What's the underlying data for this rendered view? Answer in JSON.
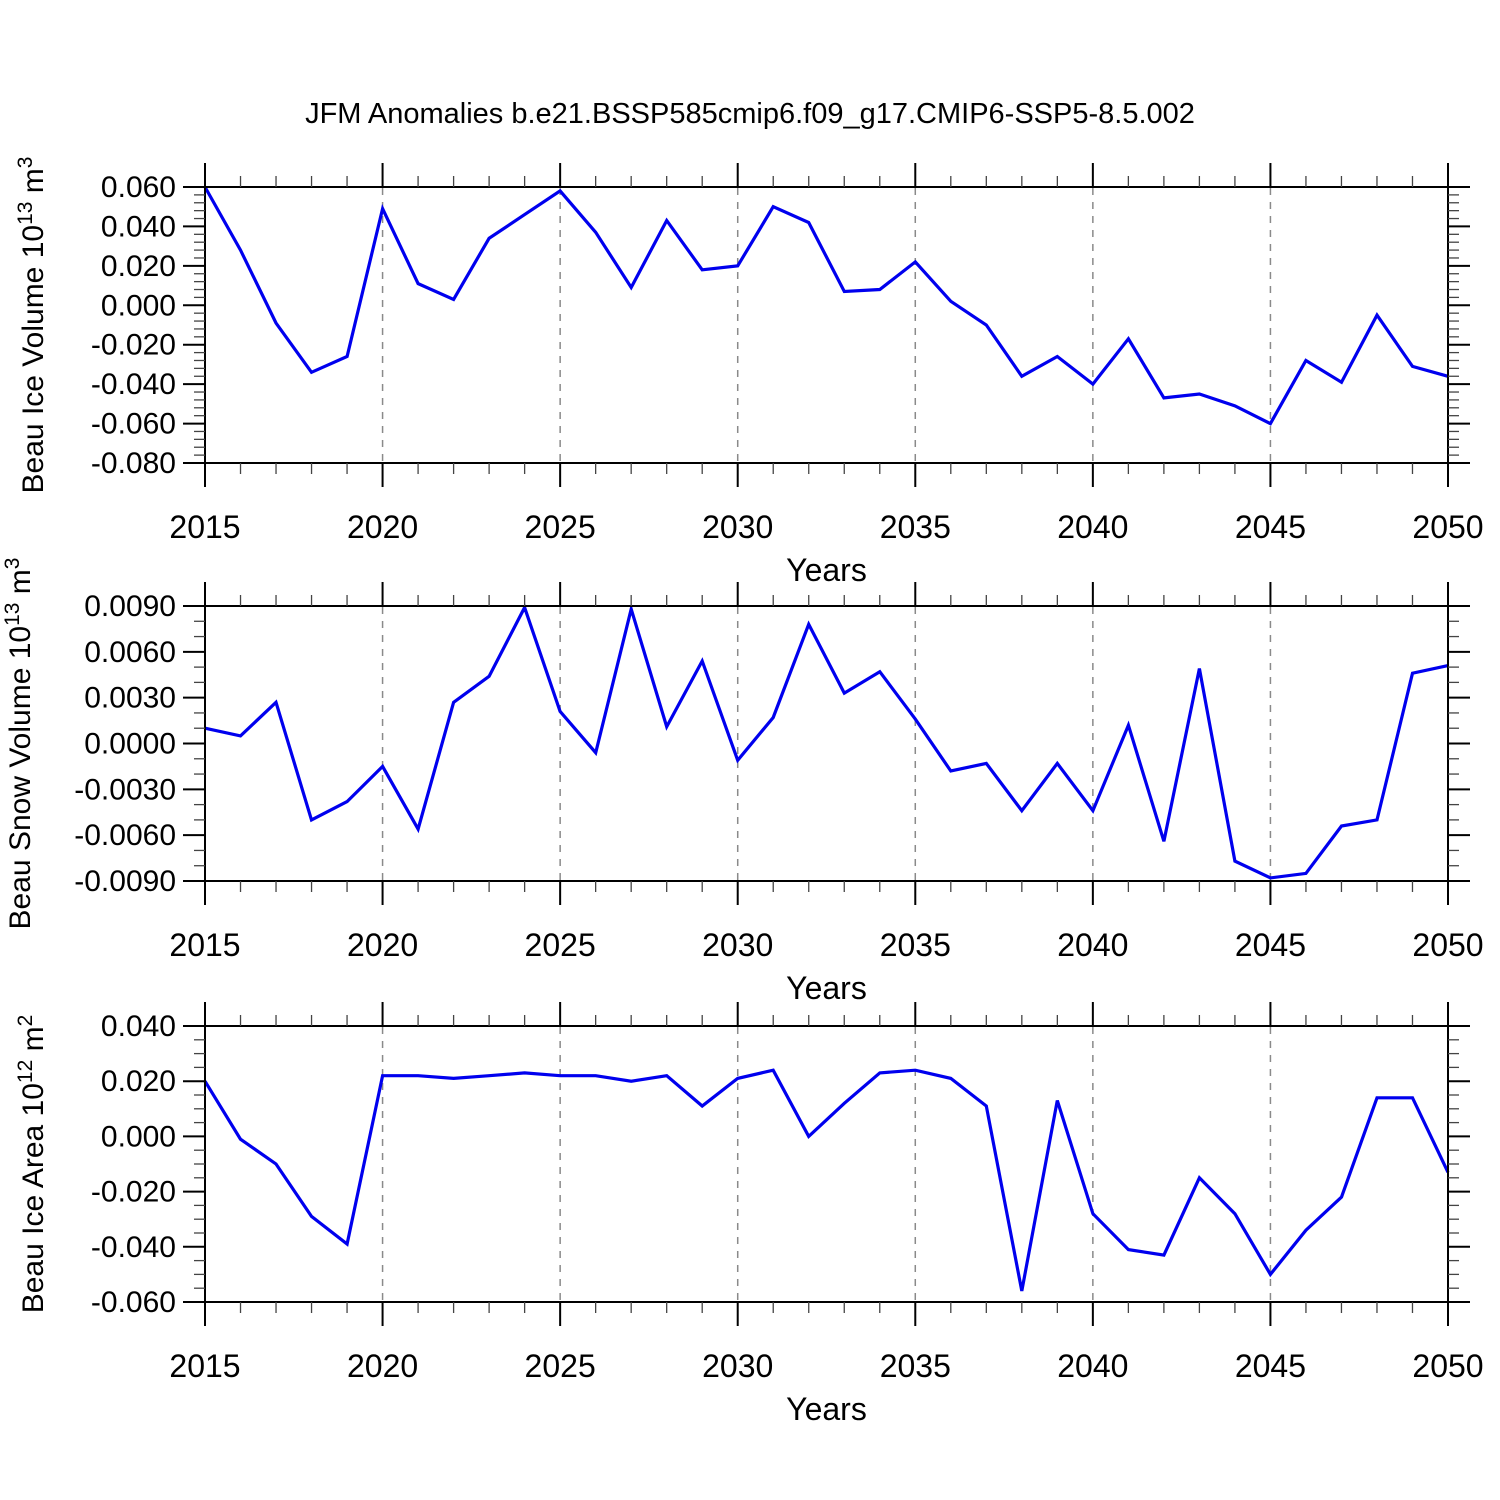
{
  "title": "JFM Anomalies b.e21.BSSP585cmip6.f09_g17.CMIP6-SSP5-8.5.002",
  "colors": {
    "line": "#0000ee",
    "grid": "#8a8a8a",
    "frame": "#000000",
    "minor_tick": "#444444",
    "background": "#ffffff"
  },
  "x_axis": {
    "label": "Years",
    "tick_labels": [
      "2015",
      "2020",
      "2025",
      "2030",
      "2035",
      "2040",
      "2045",
      "2050"
    ],
    "range": [
      2015,
      2050
    ],
    "minor_step": 1,
    "grid_years": [
      2020,
      2025,
      2030,
      2035,
      2040,
      2045
    ]
  },
  "chart_data": [
    {
      "type": "line",
      "title": "JFM Anomalies b.e21.BSSP585cmip6.f09_g17.CMIP6-SSP5-8.5.002",
      "ylabel": "Beau Ice Volume 10^13 m^3",
      "ylabel_parts": [
        {
          "t": "Beau Ice Volume 10"
        },
        {
          "t": "13",
          "sup": true
        },
        {
          "t": " m"
        },
        {
          "t": "3",
          "sup": true
        }
      ],
      "xlabel": "Years",
      "ylim": [
        -0.08,
        0.06
      ],
      "ytick_step": 0.02,
      "y_minor_step": 0.004,
      "yticks": [
        "0.060",
        "0.040",
        "0.020",
        "0.000",
        "-0.020",
        "-0.040",
        "-0.060",
        "-0.080"
      ],
      "grid": "vertical-dashed",
      "legend": "none",
      "x": [
        2015,
        2016,
        2017,
        2018,
        2019,
        2020,
        2021,
        2022,
        2023,
        2024,
        2025,
        2026,
        2027,
        2028,
        2029,
        2030,
        2031,
        2032,
        2033,
        2034,
        2035,
        2036,
        2037,
        2038,
        2039,
        2040,
        2041,
        2042,
        2043,
        2044,
        2045,
        2046,
        2047,
        2048,
        2049,
        2050
      ],
      "values": [
        0.06,
        0.028,
        -0.009,
        -0.034,
        -0.026,
        0.049,
        0.011,
        0.003,
        0.034,
        0.046,
        0.058,
        0.037,
        0.009,
        0.043,
        0.018,
        0.02,
        0.05,
        0.042,
        0.007,
        0.008,
        0.022,
        0.002,
        -0.01,
        -0.036,
        -0.026,
        -0.04,
        -0.017,
        -0.047,
        -0.045,
        -0.051,
        -0.06,
        -0.028,
        -0.039,
        -0.005,
        -0.031,
        -0.036
      ]
    },
    {
      "type": "line",
      "ylabel": "Beau Snow Volume 10^13 m^3",
      "ylabel_parts": [
        {
          "t": "Beau Snow Volume 10"
        },
        {
          "t": "13",
          "sup": true
        },
        {
          "t": " m"
        },
        {
          "t": "3",
          "sup": true
        }
      ],
      "xlabel": "Years",
      "ylim": [
        -0.009,
        0.009
      ],
      "ytick_step": 0.003,
      "y_minor_step": 0.001,
      "yticks": [
        "0.0090",
        "0.0060",
        "0.0030",
        "0.0000",
        "-0.0030",
        "-0.0060",
        "-0.0090"
      ],
      "grid": "vertical-dashed",
      "legend": "none",
      "x": [
        2015,
        2016,
        2017,
        2018,
        2019,
        2020,
        2021,
        2022,
        2023,
        2024,
        2025,
        2026,
        2027,
        2028,
        2029,
        2030,
        2031,
        2032,
        2033,
        2034,
        2035,
        2036,
        2037,
        2038,
        2039,
        2040,
        2041,
        2042,
        2043,
        2044,
        2045,
        2046,
        2047,
        2048,
        2049,
        2050
      ],
      "values": [
        0.001,
        0.0005,
        0.0027,
        -0.005,
        -0.0038,
        -0.0015,
        -0.0056,
        0.0027,
        0.0044,
        0.0089,
        0.0021,
        -0.0006,
        0.0088,
        0.0011,
        0.0054,
        -0.0011,
        0.0017,
        0.0078,
        0.0033,
        0.0047,
        0.0016,
        -0.0018,
        -0.0013,
        -0.0044,
        -0.0013,
        -0.0044,
        0.0012,
        -0.0064,
        0.0049,
        -0.0077,
        -0.0088,
        -0.0085,
        -0.0054,
        -0.005,
        0.0046,
        0.0051
      ]
    },
    {
      "type": "line",
      "ylabel": "Beau Ice Area 10^12 m^2",
      "ylabel_parts": [
        {
          "t": "Beau Ice Area 10"
        },
        {
          "t": "12",
          "sup": true
        },
        {
          "t": " m"
        },
        {
          "t": "2",
          "sup": true
        }
      ],
      "xlabel": "Years",
      "ylim": [
        -0.06,
        0.04
      ],
      "ytick_step": 0.02,
      "y_minor_step": 0.005,
      "yticks": [
        "0.040",
        "0.020",
        "0.000",
        "-0.020",
        "-0.040",
        "-0.060"
      ],
      "grid": "vertical-dashed",
      "legend": "none",
      "x": [
        2015,
        2016,
        2017,
        2018,
        2019,
        2020,
        2021,
        2022,
        2023,
        2024,
        2025,
        2026,
        2027,
        2028,
        2029,
        2030,
        2031,
        2032,
        2033,
        2034,
        2035,
        2036,
        2037,
        2038,
        2039,
        2040,
        2041,
        2042,
        2043,
        2044,
        2045,
        2046,
        2047,
        2048,
        2049,
        2050
      ],
      "values": [
        0.02,
        -0.001,
        -0.01,
        -0.029,
        -0.039,
        0.022,
        0.022,
        0.021,
        0.022,
        0.023,
        0.022,
        0.022,
        0.02,
        0.022,
        0.011,
        0.021,
        0.024,
        0.0,
        0.012,
        0.023,
        0.024,
        0.021,
        0.011,
        -0.056,
        0.013,
        -0.028,
        -0.041,
        -0.043,
        -0.015,
        -0.028,
        -0.05,
        -0.034,
        -0.022,
        0.014,
        0.014,
        -0.013
      ]
    }
  ]
}
